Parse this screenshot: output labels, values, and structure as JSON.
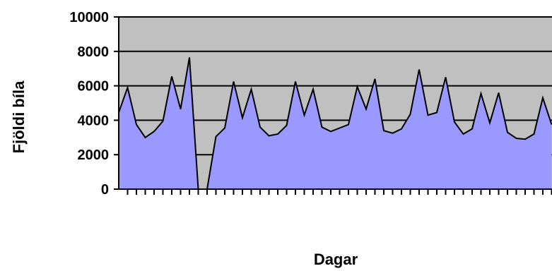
{
  "chart_data": {
    "type": "area",
    "title": "",
    "xlabel": "Dagar",
    "ylabel": "Fjöldi bíla",
    "ylim": [
      0,
      10000
    ],
    "yticks": [
      0,
      2000,
      4000,
      6000,
      8000,
      10000
    ],
    "ytick_labels": [
      "0",
      "2000",
      "4000",
      "6000",
      "8000",
      "10000"
    ],
    "grid": "horizontal",
    "legend": "none",
    "x": [
      1,
      2,
      3,
      4,
      5,
      6,
      7,
      8,
      9,
      10,
      11,
      12,
      13,
      14,
      15,
      16,
      17,
      18,
      19,
      20,
      21,
      22,
      23,
      24,
      25,
      26,
      27,
      28,
      29,
      30,
      31,
      32,
      33,
      34,
      35,
      36,
      37,
      38,
      39,
      40,
      41,
      42,
      43,
      44,
      45,
      46,
      47,
      48,
      49,
      50
    ],
    "values": [
      4450,
      5900,
      3750,
      3000,
      3350,
      3950,
      6550,
      4650,
      7650,
      0,
      0,
      3050,
      3550,
      6250,
      4150,
      5800,
      3600,
      3100,
      3200,
      3700,
      6250,
      4300,
      5800,
      3600,
      3350,
      3550,
      3750,
      5950,
      4650,
      6400,
      3400,
      3250,
      3500,
      4350,
      6950,
      4300,
      4450,
      6500,
      3900,
      3200,
      3500,
      5550,
      3850,
      5600,
      3300,
      2950,
      2900,
      3200,
      5300,
      3750
    ],
    "colors": {
      "area_fill": "#9999ff",
      "line": "#000000",
      "plot_background": "#c0c0c0"
    }
  }
}
